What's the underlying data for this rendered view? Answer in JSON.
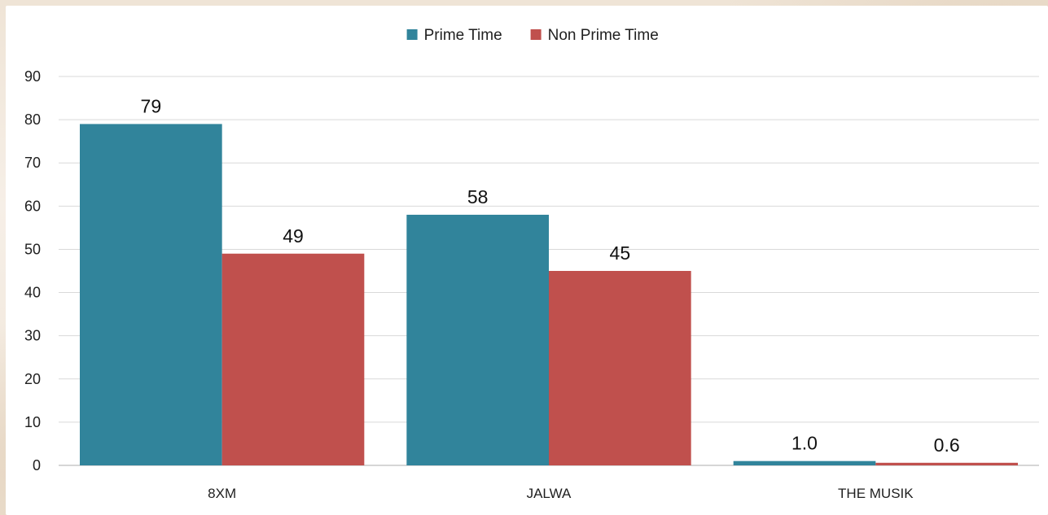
{
  "chart_data": {
    "type": "bar",
    "title": "",
    "xlabel": "",
    "ylabel": "",
    "categories": [
      "8XM",
      "JALWA",
      "THE MUSIK"
    ],
    "series": [
      {
        "name": "Prime Time",
        "color": "#31849b",
        "values": [
          79,
          58,
          1.0
        ],
        "labels": [
          "79",
          "58",
          "1.0"
        ]
      },
      {
        "name": "Non Prime Time",
        "color": "#c0504d",
        "values": [
          49,
          45,
          0.6
        ],
        "labels": [
          "49",
          "45",
          "0.6"
        ]
      }
    ],
    "ylim": [
      0,
      90
    ],
    "yticks": [
      0,
      10,
      20,
      30,
      40,
      50,
      60,
      70,
      80,
      90
    ],
    "grid": true,
    "legend": "top-center"
  }
}
